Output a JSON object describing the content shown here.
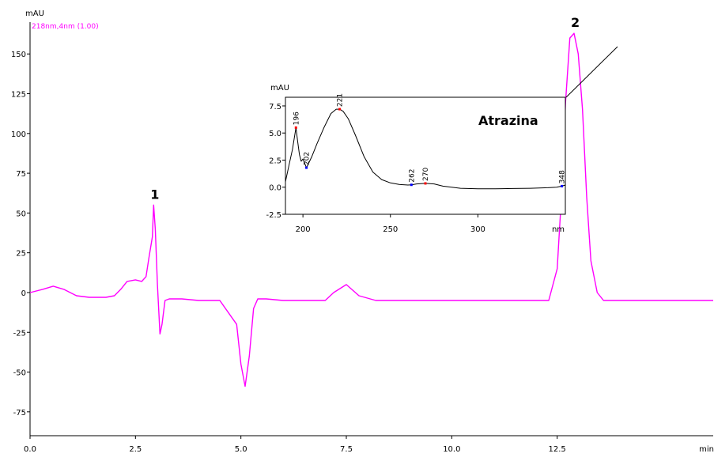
{
  "chart_data": {
    "type": "line",
    "yunit": "mAU",
    "xunit": "min",
    "trace_label": "218nm,4nm (1.00)",
    "trace_color": "#ff00ff",
    "xlim": [
      0,
      16.2
    ],
    "ylim": [
      -90,
      170
    ],
    "x_ticks": [
      {
        "value": 0,
        "label": "0.0"
      },
      {
        "value": 2.5,
        "label": "2.5"
      },
      {
        "value": 5,
        "label": "5.0"
      },
      {
        "value": 7.5,
        "label": "7.5"
      },
      {
        "value": 10,
        "label": "10.0"
      },
      {
        "value": 12.5,
        "label": "12.5"
      }
    ],
    "y_ticks": [
      {
        "value": 150,
        "label": "150"
      },
      {
        "value": 125,
        "label": "125"
      },
      {
        "value": 100,
        "label": "100"
      },
      {
        "value": 75,
        "label": "75"
      },
      {
        "value": 50,
        "label": "50"
      },
      {
        "value": 25,
        "label": "25"
      },
      {
        "value": 0,
        "label": "0"
      },
      {
        "value": -25,
        "label": "-25"
      },
      {
        "value": -50,
        "label": "-50"
      },
      {
        "value": -75,
        "label": "-75"
      }
    ],
    "series": [
      {
        "x": [
          0,
          0.3,
          0.55,
          0.8,
          1.1,
          1.4,
          1.8,
          2.0,
          2.15,
          2.3,
          2.5,
          2.65,
          2.75,
          2.82,
          2.9,
          2.93,
          2.97,
          3.02,
          3.08,
          3.13,
          3.2,
          3.3,
          3.6,
          4.0,
          4.5,
          4.9,
          5.0,
          5.1,
          5.2,
          5.3,
          5.4,
          5.6,
          6.0,
          6.5,
          7.0,
          7.2,
          7.5,
          7.8,
          8.2,
          9,
          10,
          11,
          12,
          12.3,
          12.5,
          12.6,
          12.7,
          12.8,
          12.9,
          13.0,
          13.1,
          13.2,
          13.3,
          13.45,
          13.6,
          13.8,
          14.5,
          16.2
        ],
        "y": [
          0,
          2,
          4,
          2,
          -2,
          -3,
          -3,
          -2,
          2,
          7,
          8,
          7,
          10,
          22,
          35,
          55,
          40,
          5,
          -26,
          -20,
          -5,
          -4,
          -4,
          -5,
          -5,
          -20,
          -45,
          -59,
          -40,
          -10,
          -4,
          -4,
          -5,
          -5,
          -5,
          0,
          5,
          -2,
          -5,
          -5,
          -5,
          -5,
          -5,
          -5,
          15,
          60,
          120,
          160,
          163,
          150,
          115,
          60,
          20,
          0,
          -5,
          -5,
          -5,
          -5
        ]
      }
    ],
    "peak_labels": [
      {
        "label": "1",
        "x": 2.93,
        "y": 55
      },
      {
        "label": "2",
        "x": 12.9,
        "y": 163
      }
    ],
    "inset": {
      "title": "Atrazina",
      "yunit": "mAU",
      "xunit": "nm",
      "xlim": [
        190,
        350
      ],
      "ylim": [
        -2.5,
        8.3
      ],
      "x_ticks": [
        {
          "value": 200,
          "label": "200"
        },
        {
          "value": 250,
          "label": "250"
        },
        {
          "value": 300,
          "label": "300"
        }
      ],
      "y_ticks": [
        {
          "value": 7.5,
          "label": "7.5"
        },
        {
          "value": 5,
          "label": "5.0"
        },
        {
          "value": 2.5,
          "label": "2.5"
        },
        {
          "value": 0,
          "label": "0.0"
        },
        {
          "value": -2.5,
          "label": "-2.5"
        }
      ],
      "spectrum": {
        "x": [
          190,
          192,
          194,
          196,
          197,
          198,
          199,
          200,
          202,
          205,
          208,
          212,
          216,
          219,
          221,
          223,
          226,
          230,
          235,
          240,
          245,
          250,
          255,
          260,
          262,
          265,
          270,
          275,
          280,
          290,
          300,
          310,
          320,
          330,
          340,
          345,
          348,
          350
        ],
        "y": [
          0.5,
          2,
          3.5,
          5.5,
          4.2,
          3,
          2.4,
          2.6,
          1.8,
          2.8,
          4,
          5.5,
          6.8,
          7.2,
          7.2,
          7.0,
          6.3,
          4.8,
          2.8,
          1.4,
          0.7,
          0.4,
          0.25,
          0.2,
          0.22,
          0.3,
          0.35,
          0.3,
          0.1,
          -0.1,
          -0.15,
          -0.15,
          -0.12,
          -0.1,
          -0.05,
          0,
          0.1,
          0.2
        ]
      },
      "peak_marks": [
        {
          "label": "196",
          "x": 196,
          "y": 5.5,
          "color": "#ff0000"
        },
        {
          "label": "202",
          "x": 202,
          "y": 1.8,
          "color": "#0000ff"
        },
        {
          "label": "221",
          "x": 221,
          "y": 7.2,
          "color": "#ff0000"
        },
        {
          "label": "262",
          "x": 262,
          "y": 0.22,
          "color": "#0000ff"
        },
        {
          "label": "270",
          "x": 270,
          "y": 0.35,
          "color": "#ff0000"
        },
        {
          "label": "348",
          "x": 348,
          "y": 0.1,
          "color": "#0000ff"
        }
      ]
    }
  }
}
